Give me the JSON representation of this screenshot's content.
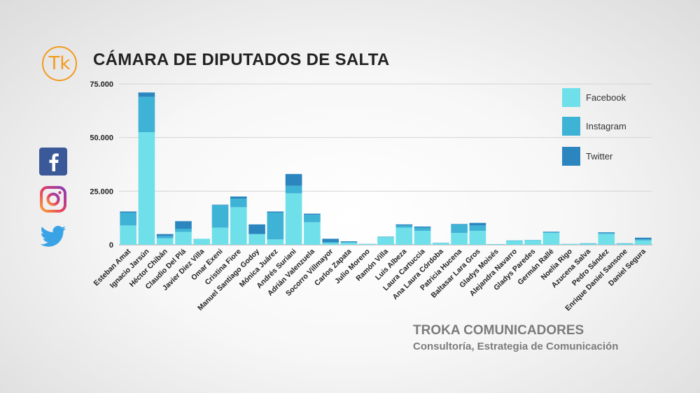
{
  "header": {
    "logo_text": "Tk",
    "title": "CÁMARA DE DIPUTADOS DE SALTA"
  },
  "footer": {
    "company": "TROKA COMUNICADORES",
    "tagline": "Consultoría, Estrategia de Comunicación"
  },
  "social_icons": [
    "facebook-icon",
    "instagram-icon",
    "twitter-icon"
  ],
  "colors": {
    "facebook": "#6fe0ea",
    "instagram": "#3fb3d6",
    "twitter": "#2b86bf",
    "accent": "#f39a1d"
  },
  "chart_data": {
    "type": "bar",
    "stacked": true,
    "title": "CÁMARA DE DIPUTADOS DE SALTA",
    "ylim": [
      0,
      75000
    ],
    "yticks": [
      0,
      25000,
      50000,
      75000
    ],
    "ytick_labels": [
      "0",
      "25.000",
      "50.000",
      "75.000"
    ],
    "legend_position": "top-right",
    "categories": [
      "Esteban Amat",
      "Ignacio Jarsún",
      "Héctor Chibán",
      "Claudio Del Plá",
      "Javier Diez Villa",
      "Omar Exeni",
      "Cristina Fiore",
      "Manuel Santiago Godoy",
      "Mónica Juárez",
      "Andrés Suriani",
      "Adrián Valenzuela",
      "Socorro Villmayor",
      "Carlos Zapata",
      "Julio Moreno",
      "Ramón Villa",
      "Luis Albeza",
      "Laura Cartuccia",
      "Ana Laura Córdoba",
      "Patricia Hucena",
      "Baltasar Lara Gros",
      "Gladys Moisés",
      "Alejandra Navarro",
      "Gladys Paredes",
      "Germán Rallé",
      "Noelia Rigo",
      "Azucena Salva",
      "Pedro Sández",
      "Enrique Daniel Sansone",
      "Daniel Segura"
    ],
    "series": [
      {
        "name": "Facebook",
        "values": [
          9000,
          52500,
          3000,
          6000,
          2800,
          8000,
          17500,
          5000,
          2500,
          24000,
          10500,
          800,
          900,
          300,
          3500,
          8000,
          6500,
          700,
          5500,
          6500,
          200,
          1800,
          2000,
          5500,
          300,
          500,
          5000,
          500,
          2000
        ]
      },
      {
        "name": "Instagram",
        "values": [
          6000,
          16500,
          1000,
          1500,
          0,
          10500,
          4000,
          0,
          12500,
          3500,
          3500,
          500,
          400,
          100,
          300,
          1000,
          1500,
          200,
          4000,
          2500,
          100,
          200,
          200,
          400,
          100,
          200,
          500,
          200,
          500
        ]
      },
      {
        "name": "Twitter",
        "values": [
          500,
          2000,
          1000,
          3500,
          0,
          200,
          1000,
          4500,
          500,
          5500,
          500,
          1500,
          300,
          0,
          0,
          500,
          500,
          0,
          200,
          1200,
          0,
          0,
          0,
          200,
          0,
          0,
          300,
          0,
          800
        ]
      }
    ]
  }
}
